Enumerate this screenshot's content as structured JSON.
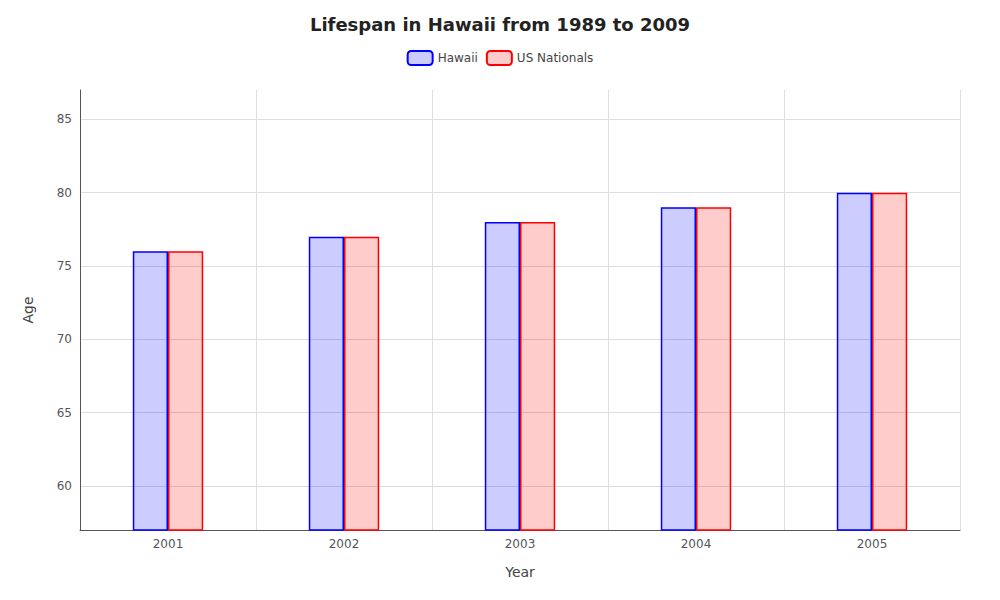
{
  "chart_data": {
    "type": "bar",
    "title": "Lifespan in Hawaii from 1989 to 2009",
    "x_label": "Year",
    "y_label": "Age",
    "categories": [
      2001,
      2002,
      2003,
      2004,
      2005
    ],
    "series": [
      {
        "name": "Hawaii",
        "color": "#0000ff",
        "values": [
          76,
          77,
          78,
          79,
          80
        ]
      },
      {
        "name": "US Nationals",
        "color": "#ff0000",
        "values": [
          76,
          77,
          78,
          79,
          80
        ]
      }
    ],
    "ylim": [
      57,
      87
    ],
    "yticks": [
      60,
      65,
      70,
      75,
      80,
      85
    ],
    "grid": true,
    "legend": "top"
  }
}
